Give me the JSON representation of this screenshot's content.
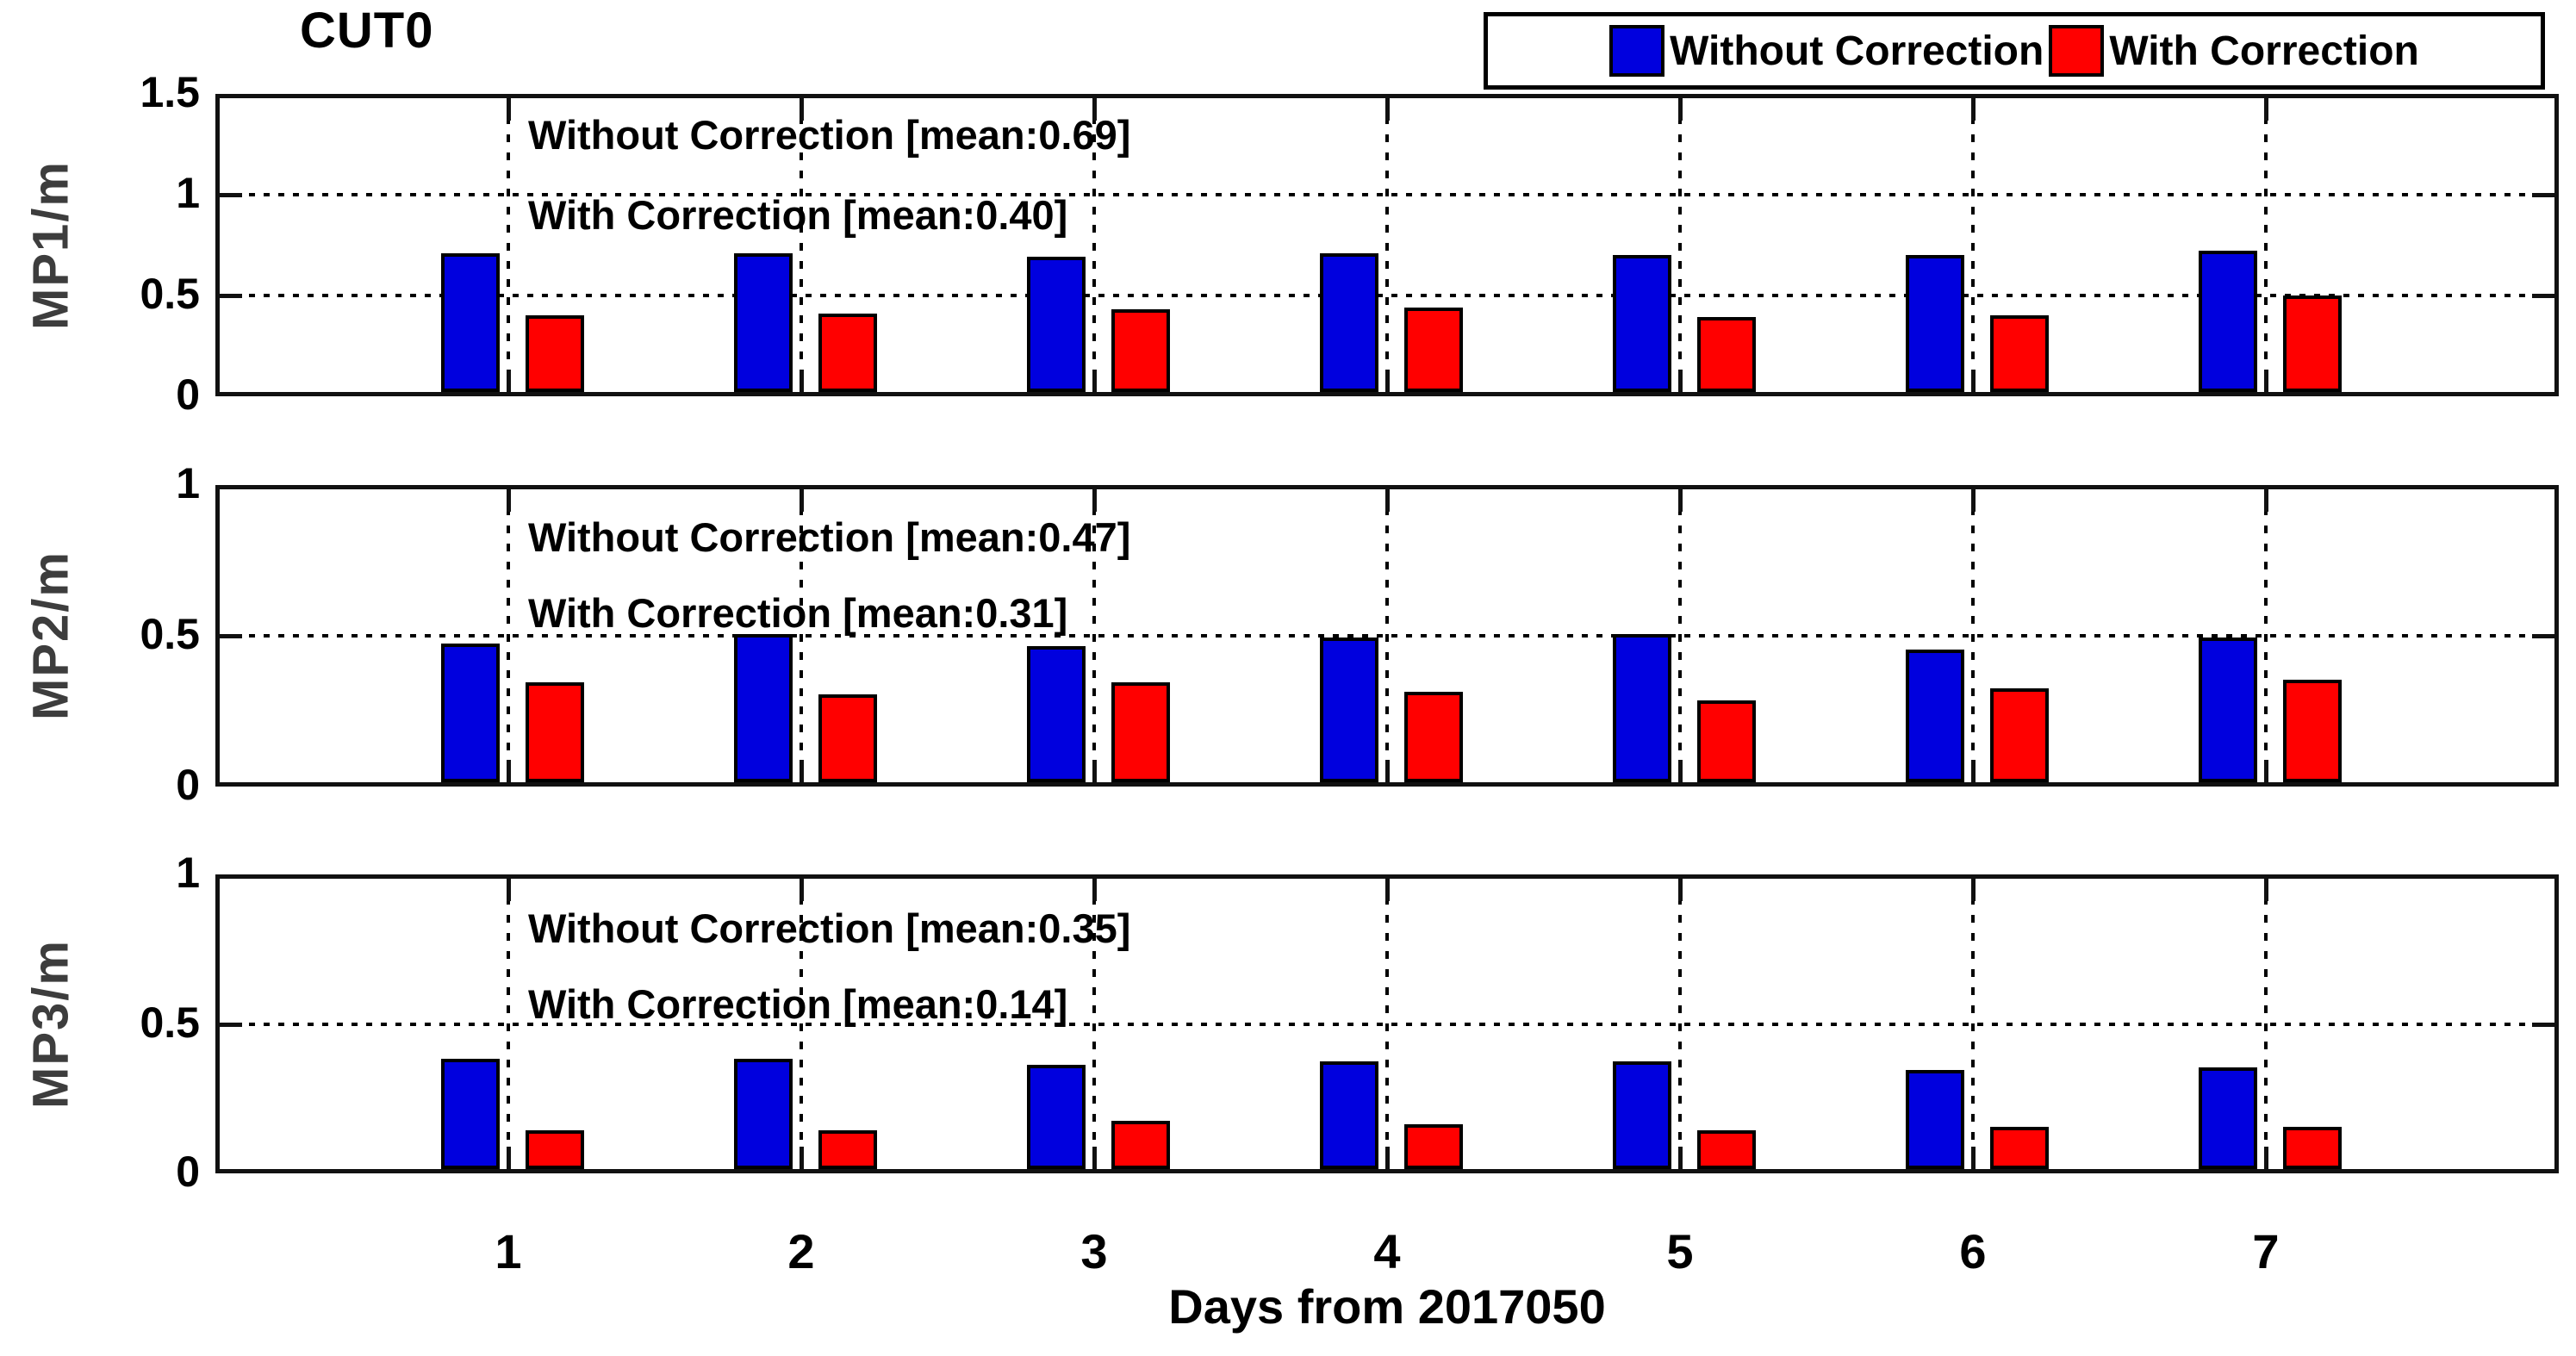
{
  "figure": {
    "title": "CUT0",
    "xlabel": "Days from 2017050",
    "background": "#ffffff"
  },
  "legend": {
    "items": [
      {
        "label": "Without Correction",
        "color": "#0000de"
      },
      {
        "label": "With Correction",
        "color": "#ff0000"
      }
    ]
  },
  "axis_colors": {
    "box": "#111111",
    "grid": "#000000",
    "ylabel_text": "#3d3d3d"
  },
  "chart_data": [
    {
      "type": "bar",
      "ylabel": "MP1/m",
      "ylim": [
        0,
        1.5
      ],
      "yticks": [
        0,
        0.5,
        1,
        1.5
      ],
      "ytick_labels": [
        "0",
        "0.5",
        "1",
        "1.5"
      ],
      "grid_values": [
        0.5,
        1
      ],
      "categories": [
        "1",
        "2",
        "3",
        "4",
        "5",
        "6",
        "7"
      ],
      "series": [
        {
          "name": "Without Correction",
          "color": "#0000de",
          "values": [
            0.69,
            0.69,
            0.67,
            0.69,
            0.68,
            0.68,
            0.7
          ]
        },
        {
          "name": "With Correction",
          "color": "#ff0000",
          "values": [
            0.38,
            0.39,
            0.41,
            0.42,
            0.37,
            0.38,
            0.48
          ]
        }
      ],
      "annotations": [
        "Without Correction [mean:0.69]",
        "With Correction [mean:0.40]"
      ]
    },
    {
      "type": "bar",
      "ylabel": "MP2/m",
      "ylim": [
        0,
        1
      ],
      "yticks": [
        0,
        0.5,
        1
      ],
      "ytick_labels": [
        "0",
        "0.5",
        "1"
      ],
      "grid_values": [
        0.5
      ],
      "categories": [
        "1",
        "2",
        "3",
        "4",
        "5",
        "6",
        "7"
      ],
      "series": [
        {
          "name": "Without Correction",
          "color": "#0000de",
          "values": [
            0.46,
            0.49,
            0.45,
            0.48,
            0.49,
            0.44,
            0.48
          ]
        },
        {
          "name": "With Correction",
          "color": "#ff0000",
          "values": [
            0.33,
            0.29,
            0.33,
            0.3,
            0.27,
            0.31,
            0.34
          ]
        }
      ],
      "annotations": [
        "Without Correction [mean:0.47]",
        "With Correction [mean:0.31]"
      ]
    },
    {
      "type": "bar",
      "ylabel": "MP3/m",
      "ylim": [
        0,
        1
      ],
      "yticks": [
        0,
        0.5,
        1
      ],
      "ytick_labels": [
        "0",
        "0.5",
        "1"
      ],
      "grid_values": [
        0.5
      ],
      "categories": [
        "1",
        "2",
        "3",
        "4",
        "5",
        "6",
        "7"
      ],
      "series": [
        {
          "name": "Without Correction",
          "color": "#0000de",
          "values": [
            0.37,
            0.37,
            0.35,
            0.36,
            0.36,
            0.33,
            0.34
          ]
        },
        {
          "name": "With Correction",
          "color": "#ff0000",
          "values": [
            0.13,
            0.13,
            0.16,
            0.15,
            0.13,
            0.14,
            0.14
          ]
        }
      ],
      "annotations": [
        "Without Correction [mean:0.35]",
        "With Correction [mean:0.14]"
      ]
    }
  ]
}
